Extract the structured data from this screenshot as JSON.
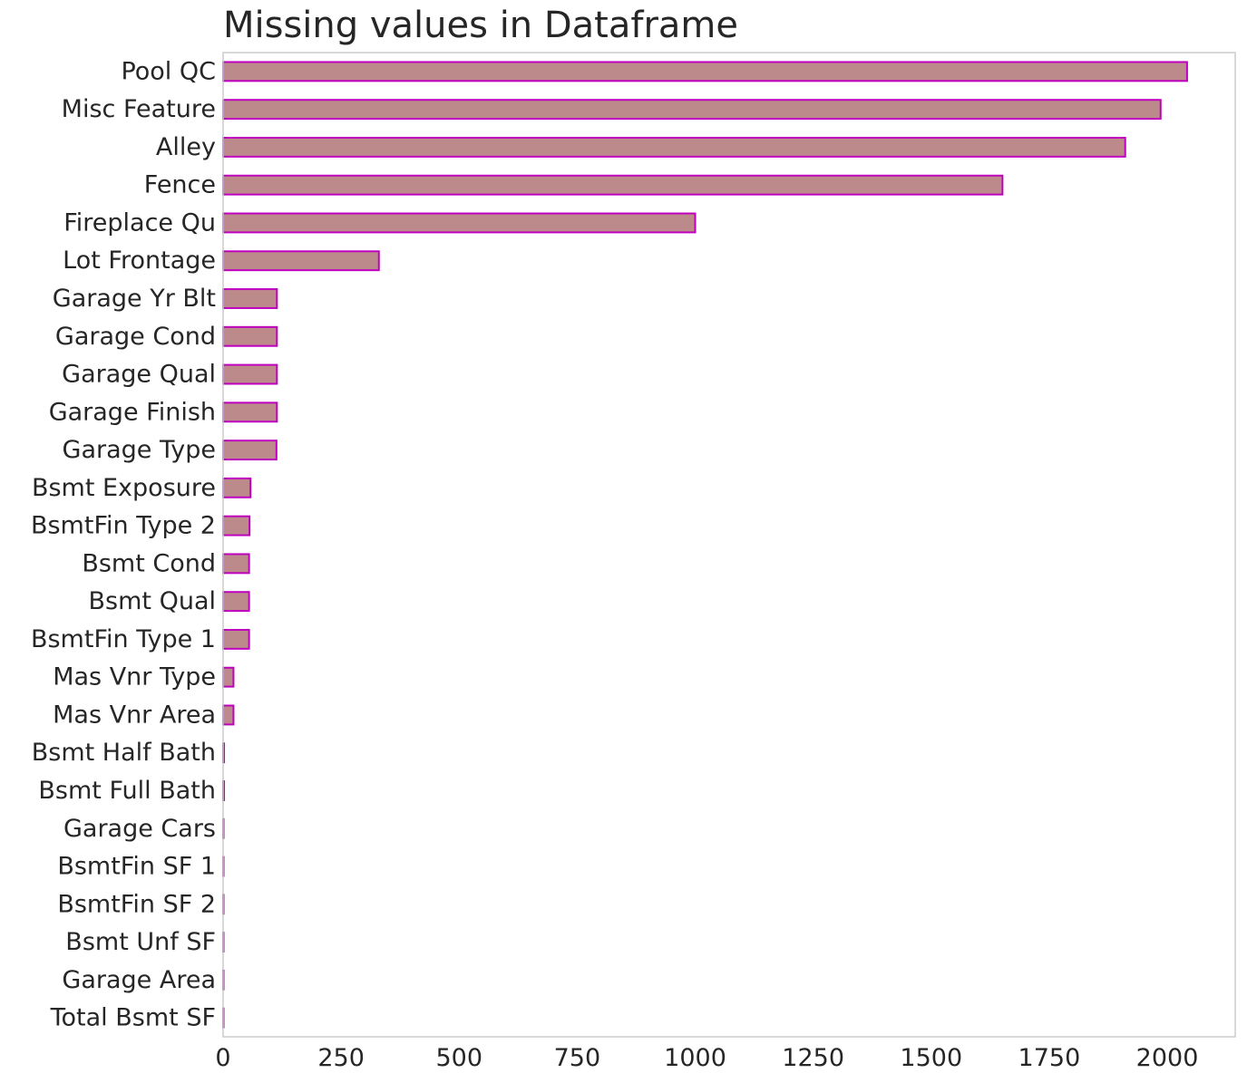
{
  "chart_data": {
    "type": "bar",
    "orientation": "horizontal",
    "title": "Missing values in Dataframe",
    "xlabel": "",
    "ylabel": "",
    "categories": [
      "Pool QC",
      "Misc Feature",
      "Alley",
      "Fence",
      "Fireplace Qu",
      "Lot Frontage",
      "Garage Yr Blt",
      "Garage Cond",
      "Garage Qual",
      "Garage Finish",
      "Garage Type",
      "Bsmt Exposure",
      "BsmtFin Type 2",
      "Bsmt Cond",
      "Bsmt Qual",
      "BsmtFin Type 1",
      "Mas Vnr Type",
      "Mas Vnr Area",
      "Bsmt Half Bath",
      "Bsmt Full Bath",
      "Garage Cars",
      "BsmtFin SF 1",
      "BsmtFin SF 2",
      "Bsmt Unf SF",
      "Garage Area",
      "Total Bsmt SF"
    ],
    "values": [
      2042,
      1986,
      1911,
      1651,
      1000,
      330,
      114,
      114,
      114,
      114,
      113,
      58,
      56,
      55,
      55,
      55,
      22,
      22,
      2,
      2,
      1,
      1,
      1,
      1,
      1,
      1
    ],
    "xlim": [
      0,
      2144
    ],
    "xticks": [
      0,
      250,
      500,
      750,
      1000,
      1250,
      1500,
      1750,
      2000
    ],
    "grid": false,
    "colors": {
      "bar_fill": "#bc8a8a",
      "bar_edge": "#bf00bf",
      "frame": "#cccccc",
      "text": "#262626"
    }
  }
}
